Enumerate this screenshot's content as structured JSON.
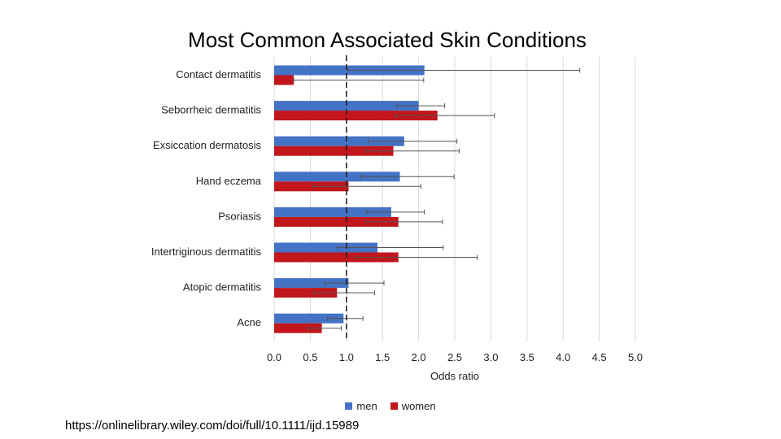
{
  "chart_data": {
    "type": "bar",
    "orientation": "horizontal",
    "title": "Most Common Associated Skin Conditions",
    "xlabel": "Odds ratio",
    "ylabel": "",
    "xlim": [
      0,
      5
    ],
    "xticks": [
      "0.0",
      "0.5",
      "1.0",
      "1.5",
      "2.0",
      "2.5",
      "3.0",
      "3.5",
      "4.0",
      "4.5",
      "5.0"
    ],
    "reference_line": 1.0,
    "grid": "vertical",
    "legend_position": "bottom",
    "categories": [
      "Contact dermatitis",
      "Seborrheic dermatitis",
      "Exsiccation dermatosis",
      "Hand eczema",
      "Psoriasis",
      "Intertriginous dermatitis",
      "Atopic dermatitis",
      "Acne"
    ],
    "series": [
      {
        "name": "men",
        "color": "#4472c4",
        "values": [
          2.08,
          2.0,
          1.8,
          1.74,
          1.62,
          1.43,
          1.03,
          0.96
        ],
        "ci_lower": [
          1.02,
          1.7,
          1.3,
          1.2,
          1.28,
          0.88,
          0.7,
          0.74
        ],
        "ci_upper": [
          4.23,
          2.36,
          2.53,
          2.49,
          2.08,
          2.34,
          1.52,
          1.23
        ]
      },
      {
        "name": "women",
        "color": "#c0161c",
        "values": [
          0.27,
          2.26,
          1.65,
          1.03,
          1.72,
          1.72,
          0.87,
          0.66
        ],
        "ci_lower": [
          0.27,
          1.68,
          1.28,
          0.54,
          1.27,
          1.12,
          0.55,
          0.47
        ],
        "ci_upper": [
          2.07,
          3.05,
          2.56,
          2.03,
          2.33,
          2.81,
          1.39,
          0.93
        ]
      }
    ]
  },
  "source_url": "https://onlinelibrary.wiley.com/doi/full/10.1111/ijd.15989"
}
